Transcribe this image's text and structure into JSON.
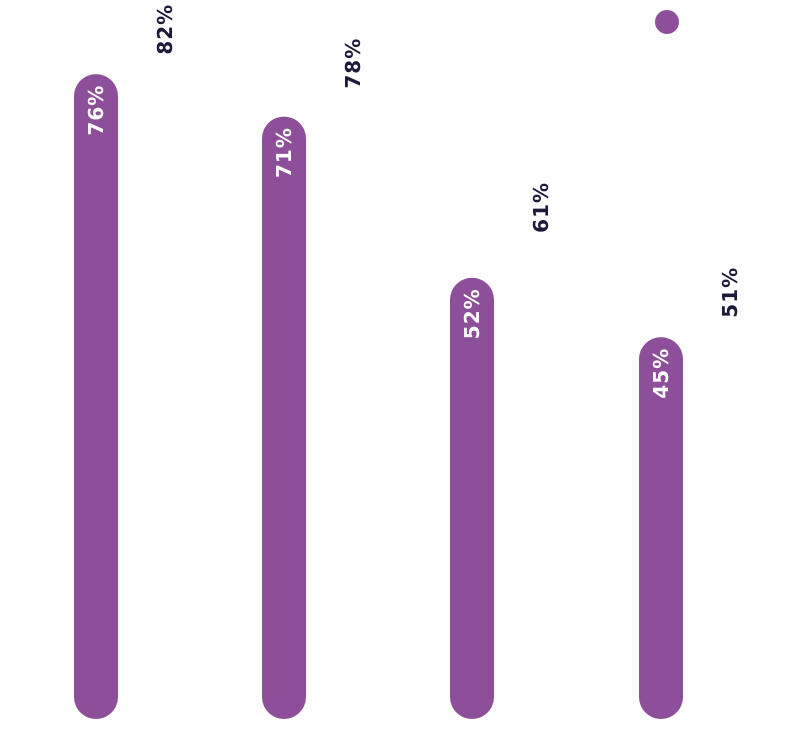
{
  "chart_data": {
    "type": "bar",
    "categories": [
      "",
      "",
      "",
      ""
    ],
    "series": [
      {
        "values": [
          76,
          71,
          52,
          45
        ],
        "labels": [
          "76%",
          "71%",
          "52%",
          "45%"
        ],
        "color": "#8e4f9a",
        "legend_marker": true
      },
      {
        "values": [
          82,
          78,
          61,
          51
        ],
        "labels": [
          "82%",
          "78%",
          "61%",
          "51%"
        ],
        "color": "#1c1a3a",
        "legend_marker": false
      }
    ],
    "title": "",
    "xlabel": "",
    "ylabel": "",
    "ylim": [
      0,
      100
    ],
    "label_color_inside": "#ffffff",
    "grid": false,
    "legend": "top-right"
  }
}
